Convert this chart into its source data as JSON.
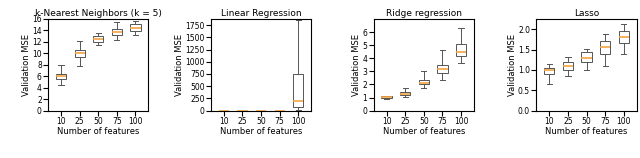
{
  "titles": [
    "k-Nearest Neighbors (k = 5)",
    "Linear Regression",
    "Ridge regression",
    "Lasso"
  ],
  "xlabel": "Number of features",
  "ylabel": "Validation MSE",
  "x_labels": [
    "10",
    "25",
    "50",
    "75",
    "100"
  ],
  "x_positions": [
    1,
    2,
    3,
    4,
    5
  ],
  "knn": {
    "medians": [
      6.0,
      10.0,
      12.5,
      13.8,
      14.4
    ],
    "q1": [
      5.6,
      9.4,
      12.0,
      13.2,
      13.9
    ],
    "q3": [
      6.4,
      10.6,
      13.1,
      14.3,
      15.1
    ],
    "whislo": [
      4.5,
      7.8,
      11.4,
      12.3,
      13.2
    ],
    "whishi": [
      7.9,
      12.1,
      13.6,
      15.5,
      15.6
    ],
    "ylim": [
      0,
      16
    ],
    "yticks": [
      0,
      2,
      4,
      6,
      8,
      10,
      12,
      14,
      16
    ]
  },
  "linreg": {
    "medians": [
      0.5,
      0.5,
      0.5,
      0.5,
      200.0
    ],
    "q1": [
      0.2,
      0.2,
      0.2,
      0.2,
      70.0
    ],
    "q3": [
      0.8,
      0.8,
      0.8,
      0.8,
      750.0
    ],
    "whislo": [
      0.05,
      0.05,
      0.05,
      0.05,
      5.0
    ],
    "whishi": [
      1.0,
      1.0,
      1.0,
      1.0,
      1850.0
    ],
    "ylim": [
      0,
      1875
    ],
    "yticks": [
      0,
      250,
      500,
      750,
      1000,
      1250,
      1500,
      1750
    ]
  },
  "ridge": {
    "medians": [
      1.05,
      1.3,
      2.1,
      3.2,
      4.5
    ],
    "q1": [
      1.0,
      1.2,
      2.0,
      2.85,
      4.2
    ],
    "q3": [
      1.1,
      1.4,
      2.3,
      3.5,
      5.1
    ],
    "whislo": [
      0.9,
      1.05,
      1.75,
      2.35,
      3.6
    ],
    "whishi": [
      1.15,
      1.75,
      3.05,
      4.65,
      6.3
    ],
    "ylim": [
      0,
      7
    ],
    "yticks": [
      0,
      1,
      2,
      3,
      4,
      5,
      6
    ]
  },
  "lasso": {
    "medians": [
      1.0,
      1.1,
      1.3,
      1.55,
      1.8
    ],
    "q1": [
      0.9,
      1.0,
      1.2,
      1.4,
      1.65
    ],
    "q3": [
      1.05,
      1.2,
      1.45,
      1.7,
      1.95
    ],
    "whislo": [
      0.65,
      0.85,
      1.0,
      1.1,
      1.4
    ],
    "whishi": [
      1.15,
      1.32,
      1.52,
      1.88,
      2.12
    ],
    "ylim": [
      0,
      2.25
    ],
    "yticks": [
      0.0,
      0.5,
      1.0,
      1.5,
      2.0
    ]
  },
  "median_color": "#f4a442",
  "whisker_color": "#555555",
  "figsize": [
    6.4,
    1.58
  ],
  "dpi": 100
}
